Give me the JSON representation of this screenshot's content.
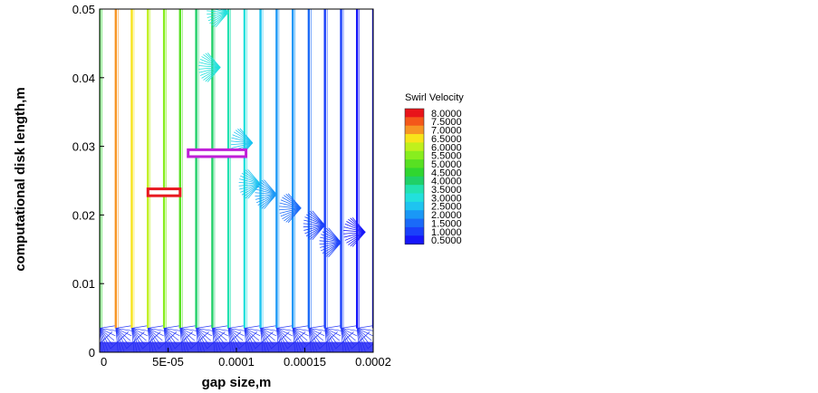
{
  "chart_data": {
    "type": "vector-field",
    "xlabel": "gap size,m",
    "ylabel": "computational disk length,m",
    "xlim": [
      0,
      0.0002
    ],
    "ylim": [
      0,
      0.05
    ],
    "x_ticks": [
      "0",
      "5E-05",
      "0.0001",
      "0.00015",
      "0.0002"
    ],
    "x_tick_values": [
      0,
      5e-05,
      0.0001,
      0.00015,
      0.0002
    ],
    "y_ticks": [
      "0",
      "0.01",
      "0.02",
      "0.03",
      "0.04",
      "0.05"
    ],
    "y_tick_values": [
      0,
      0.01,
      0.02,
      0.03,
      0.04,
      0.05
    ],
    "legend": {
      "title": "Swirl Velocity",
      "placement": "right",
      "levels": [
        "8.0000",
        "7.5000",
        "7.0000",
        "6.5000",
        "6.0000",
        "5.5000",
        "5.0000",
        "4.5000",
        "4.0000",
        "3.5000",
        "3.0000",
        "2.5000",
        "2.0000",
        "1.5000",
        "1.0000",
        "0.5000"
      ],
      "colors": [
        "#e8141a",
        "#f4581a",
        "#f79624",
        "#f8e41a",
        "#c0f01c",
        "#88ee1e",
        "#58e022",
        "#30d630",
        "#20d068",
        "#22e2b0",
        "#22e0dc",
        "#1ec4f0",
        "#1a98f6",
        "#1a6af8",
        "#1a40fa",
        "#1616fa"
      ]
    },
    "columns": [
      {
        "x": 0.0,
        "swirl": 4.5
      },
      {
        "x": 1.18e-05,
        "swirl": 7.2
      },
      {
        "x": 2.35e-05,
        "swirl": 6.7
      },
      {
        "x": 3.53e-05,
        "swirl": 6.2
      },
      {
        "x": 4.71e-05,
        "swirl": 5.5
      },
      {
        "x": 5.88e-05,
        "swirl": 4.8
      },
      {
        "x": 7.06e-05,
        "swirl": 4.2
      },
      {
        "x": 8.24e-05,
        "swirl": 3.8
      },
      {
        "x": 9.41e-05,
        "swirl": 3.5
      },
      {
        "x": 0.0001059,
        "swirl": 3.0
      },
      {
        "x": 0.0001176,
        "swirl": 2.6
      },
      {
        "x": 0.0001294,
        "swirl": 2.2
      },
      {
        "x": 0.0001412,
        "swirl": 1.9
      },
      {
        "x": 0.0001529,
        "swirl": 1.5
      },
      {
        "x": 0.0001647,
        "swirl": 1.2
      },
      {
        "x": 0.0001765,
        "swirl": 0.9
      },
      {
        "x": 0.0001882,
        "swirl": 0.6
      },
      {
        "x": 0.0002,
        "swirl": 0.5
      }
    ],
    "fans": [
      {
        "x": 8.82e-05,
        "y": 0.0415,
        "swirl": 3.2
      },
      {
        "x": 9.41e-05,
        "y": 0.0495,
        "swirl": 2.9
      },
      {
        "x": 0.0001118,
        "y": 0.0305,
        "swirl": 2.7
      },
      {
        "x": 0.0001176,
        "y": 0.0245,
        "swirl": 2.3
      },
      {
        "x": 0.0001294,
        "y": 0.023,
        "swirl": 2.0
      },
      {
        "x": 0.0001471,
        "y": 0.021,
        "swirl": 1.6
      },
      {
        "x": 0.0001647,
        "y": 0.0185,
        "swirl": 1.2
      },
      {
        "x": 0.0001765,
        "y": 0.016,
        "swirl": 1.0
      },
      {
        "x": 0.0001941,
        "y": 0.0175,
        "swirl": 0.7
      }
    ],
    "highlight_boxes": [
      {
        "x0": 3.53e-05,
        "x1": 5.88e-05,
        "y0": 0.0228,
        "y1": 0.0238,
        "color": "#e81820"
      },
      {
        "x0": 6.47e-05,
        "x1": 0.000107,
        "y0": 0.0285,
        "y1": 0.0295,
        "color": "#c020d8"
      }
    ],
    "grid": false
  }
}
